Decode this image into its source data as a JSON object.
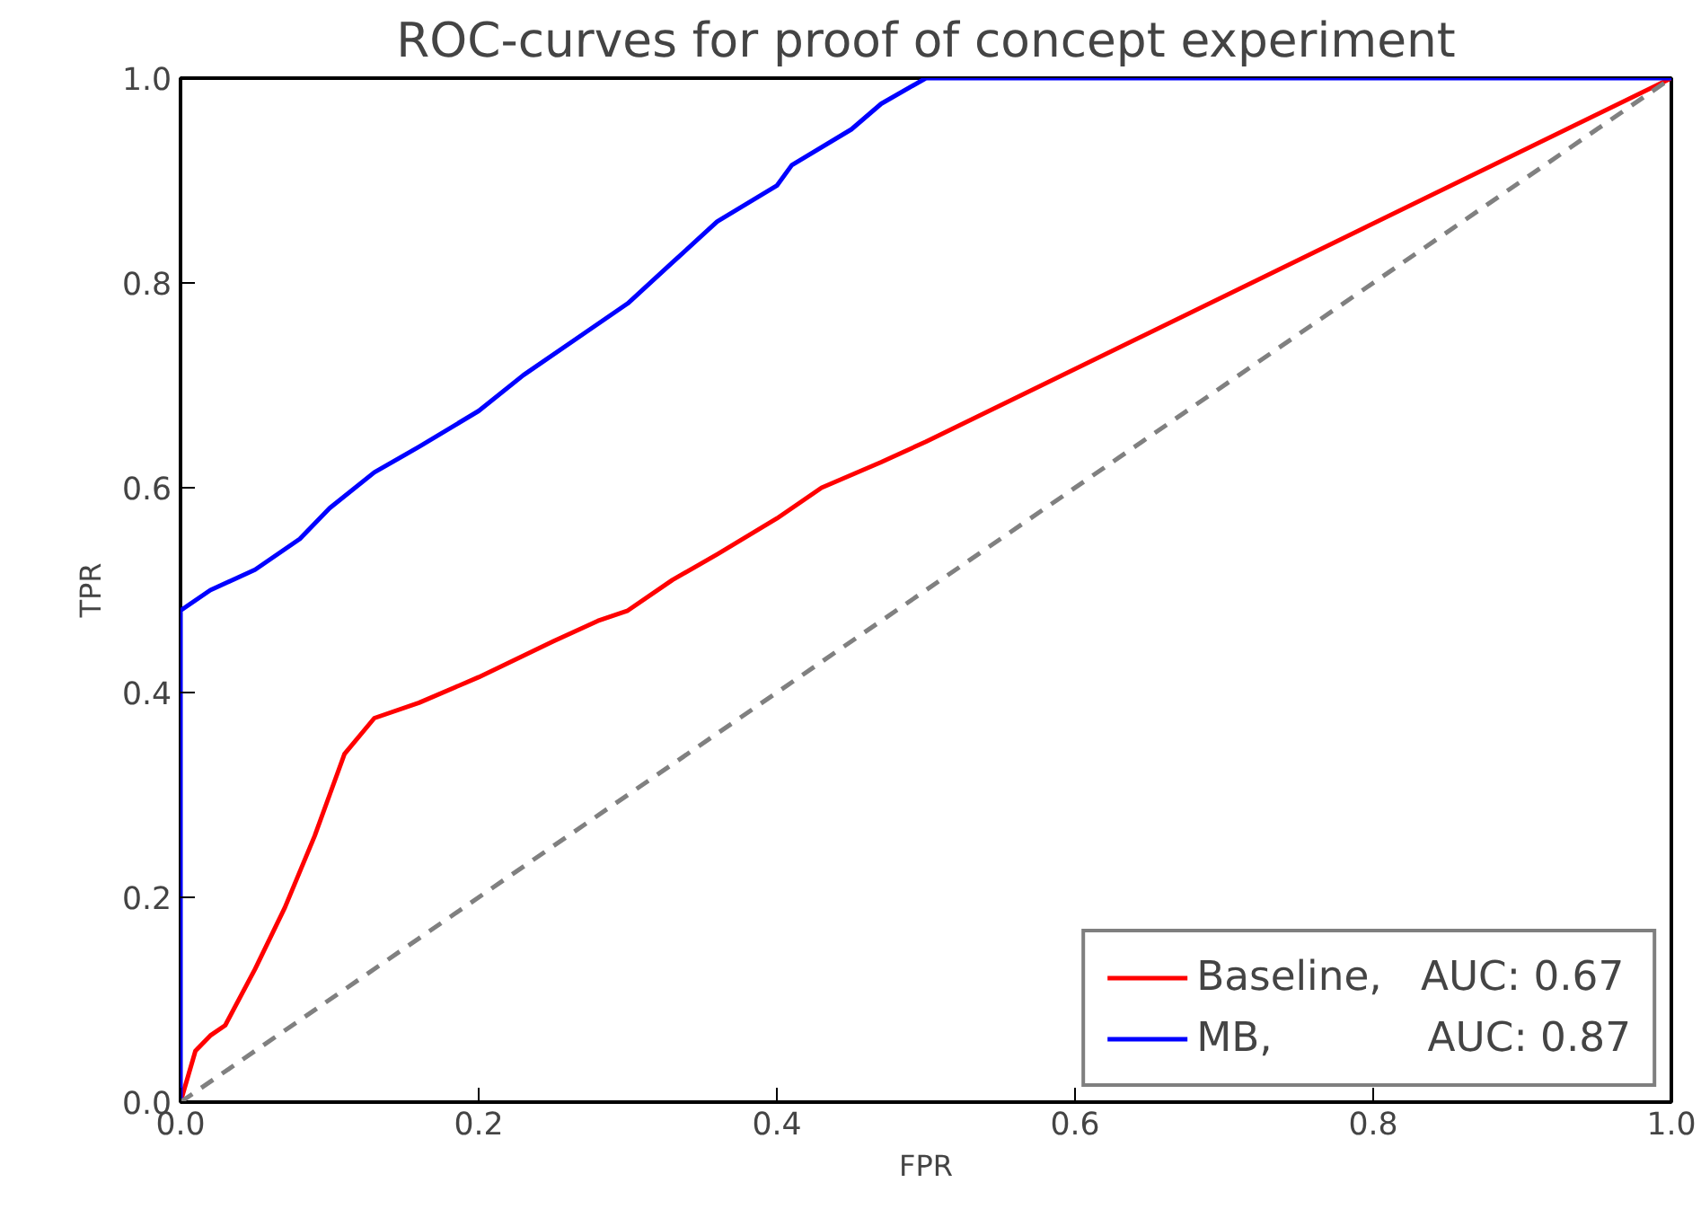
{
  "chart_data": {
    "type": "line",
    "title": "ROC-curves for proof of concept experiment",
    "xlabel": "FPR",
    "ylabel": "TPR",
    "xlim": [
      0,
      1
    ],
    "ylim": [
      0,
      1
    ],
    "xticks": [
      {
        "value": 0,
        "label": "0.0"
      },
      {
        "value": 0.2,
        "label": "0.2"
      },
      {
        "value": 0.4,
        "label": "0.4"
      },
      {
        "value": 0.6,
        "label": "0.6"
      },
      {
        "value": 0.8,
        "label": "0.8"
      },
      {
        "value": 1,
        "label": "1.0"
      }
    ],
    "yticks": [
      {
        "value": 0,
        "label": "0.0"
      },
      {
        "value": 0.2,
        "label": "0.2"
      },
      {
        "value": 0.4,
        "label": "0.4"
      },
      {
        "value": 0.6,
        "label": "0.6"
      },
      {
        "value": 0.8,
        "label": "0.8"
      },
      {
        "value": 1,
        "label": "1.0"
      }
    ],
    "grid": false,
    "legend": "bottom right",
    "marker": "none",
    "series": [
      {
        "name": "Baseline,   AUC: 0.67",
        "color": "#ff0000",
        "x": [
          0,
          0.01,
          0.02,
          0.03,
          0.05,
          0.07,
          0.09,
          0.1,
          0.11,
          0.13,
          0.16,
          0.2,
          0.25,
          0.28,
          0.3,
          0.33,
          0.36,
          0.4,
          0.43,
          0.47,
          0.5,
          1
        ],
        "values": [
          0,
          0.05,
          0.065,
          0.075,
          0.13,
          0.19,
          0.26,
          0.3,
          0.34,
          0.375,
          0.39,
          0.415,
          0.45,
          0.47,
          0.48,
          0.51,
          0.535,
          0.57,
          0.6,
          0.625,
          0.645,
          1
        ]
      },
      {
        "name": "MB,            AUC: 0.87",
        "color": "#0000ff",
        "x": [
          0,
          0,
          0.02,
          0.05,
          0.08,
          0.1,
          0.13,
          0.16,
          0.2,
          0.23,
          0.27,
          0.3,
          0.33,
          0.36,
          0.4,
          0.41,
          0.45,
          0.47,
          0.5,
          1
        ],
        "values": [
          0,
          0.48,
          0.5,
          0.52,
          0.55,
          0.58,
          0.615,
          0.64,
          0.675,
          0.71,
          0.75,
          0.78,
          0.82,
          0.86,
          0.895,
          0.915,
          0.95,
          0.975,
          1,
          1
        ]
      },
      {
        "color": "#808080",
        "line_style": "dashed",
        "x": [
          0,
          1
        ],
        "values": [
          0,
          1
        ]
      }
    ]
  }
}
